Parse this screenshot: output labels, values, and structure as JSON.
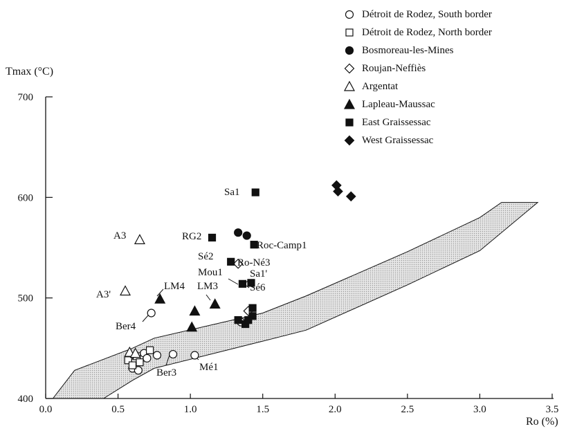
{
  "chart_data": {
    "type": "scatter",
    "xlabel": "Ro (%)",
    "ylabel": "Tmax (°C)",
    "xlim": [
      0.0,
      3.5
    ],
    "ylim": [
      400,
      700
    ],
    "x_ticks": [
      0.0,
      0.5,
      1.0,
      1.5,
      2.0,
      2.5,
      3.0,
      3.5
    ],
    "x_tick_labels": [
      "0.0",
      "0.5",
      "1.0",
      "1.5",
      "2.0",
      "2.5",
      "3.0",
      "3.5"
    ],
    "y_ticks": [
      400,
      500,
      600,
      700
    ],
    "y_tick_labels": [
      "400",
      "500",
      "600",
      "700"
    ],
    "band": {
      "upper": [
        [
          0.2,
          428
        ],
        [
          0.6,
          450
        ],
        [
          0.75,
          460
        ],
        [
          1.5,
          485
        ],
        [
          1.8,
          502
        ],
        [
          2.5,
          546
        ],
        [
          3.0,
          580
        ],
        [
          3.15,
          595
        ],
        [
          3.4,
          595
        ]
      ],
      "lower": [
        [
          0.05,
          400
        ],
        [
          0.4,
          400
        ],
        [
          0.6,
          418
        ],
        [
          0.75,
          430
        ],
        [
          1.5,
          457
        ],
        [
          1.8,
          468
        ],
        [
          2.5,
          513
        ],
        [
          3.0,
          547
        ],
        [
          3.4,
          595
        ]
      ]
    },
    "series": [
      {
        "name": "Détroit de Rodez, South border",
        "marker": "circle-open",
        "points": [
          [
            0.6,
            430
          ],
          [
            0.62,
            437
          ],
          [
            0.64,
            428
          ],
          [
            0.66,
            440
          ],
          [
            0.68,
            445
          ],
          [
            0.7,
            440
          ],
          [
            0.73,
            485
          ],
          [
            0.77,
            443
          ],
          [
            0.88,
            444
          ],
          [
            1.03,
            443
          ],
          [
            1.35,
            476
          ]
        ]
      },
      {
        "name": "Détroit de Rodez, North border",
        "marker": "square-open",
        "points": [
          [
            0.57,
            438
          ],
          [
            0.6,
            433
          ],
          [
            0.63,
            442
          ],
          [
            0.65,
            436
          ],
          [
            0.72,
            448
          ]
        ]
      },
      {
        "name": "Bosmoreau-les-Mines",
        "marker": "circle-filled",
        "points": [
          [
            1.33,
            565
          ],
          [
            1.39,
            562
          ]
        ]
      },
      {
        "name": "Roujan-Neffiès",
        "marker": "diamond-open",
        "points": [
          [
            1.33,
            534
          ],
          [
            1.4,
            487
          ]
        ]
      },
      {
        "name": "Argentat",
        "marker": "triangle-open",
        "points": [
          [
            0.65,
            558
          ],
          [
            0.55,
            507
          ],
          [
            0.58,
            446
          ],
          [
            0.62,
            445
          ]
        ]
      },
      {
        "name": "Lapleau-Maussac",
        "marker": "triangle-filled",
        "points": [
          [
            0.79,
            499
          ],
          [
            1.01,
            471
          ],
          [
            1.03,
            487
          ],
          [
            1.17,
            494
          ]
        ]
      },
      {
        "name": "East Graissessac",
        "marker": "square-filled",
        "points": [
          [
            1.45,
            605
          ],
          [
            1.15,
            560
          ],
          [
            1.44,
            553
          ],
          [
            1.28,
            536
          ],
          [
            1.36,
            514
          ],
          [
            1.42,
            515
          ],
          [
            1.33,
            478
          ],
          [
            1.38,
            474
          ],
          [
            1.43,
            482
          ],
          [
            1.43,
            490
          ],
          [
            1.4,
            478
          ]
        ]
      },
      {
        "name": "West Graissessac",
        "marker": "diamond-filled",
        "points": [
          [
            2.01,
            612
          ],
          [
            2.02,
            606
          ],
          [
            2.11,
            601
          ]
        ]
      }
    ],
    "annotations": [
      "Sa1",
      "RG2",
      "Roc-Camp1",
      "Sé2",
      "Ro-Né3",
      "Mou1",
      "Sa1'",
      "Sé6",
      "A3",
      "A3'",
      "LM4",
      "LM3",
      "Ber4",
      "Ber3",
      "Mé1"
    ]
  }
}
